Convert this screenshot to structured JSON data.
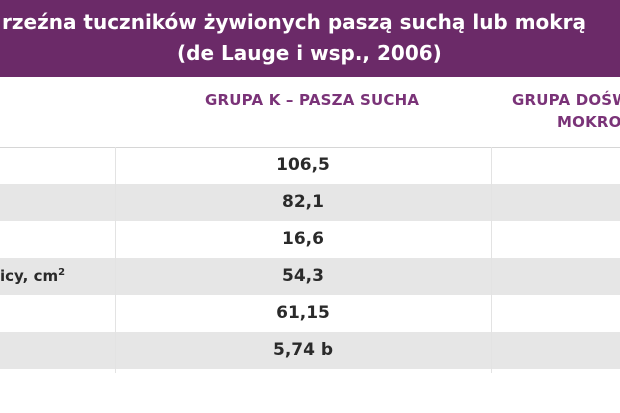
{
  "title": {
    "line1": "rzeźna tuczników żywionych paszą suchą lub mokrą",
    "line2": "(de Lauge i wsp., 2006)"
  },
  "headers": {
    "group_k": "GRUPA K – PASZA SUCHA",
    "group_d_line1": "GRUPA DOŚW",
    "group_d_line2": "MOKRO"
  },
  "rows": [
    {
      "label": "",
      "value": "106,5"
    },
    {
      "label": "",
      "value": "82,1"
    },
    {
      "label": "",
      "value": "16,6"
    },
    {
      "label": "icy, cm",
      "label_sup": "2",
      "value": "54,3"
    },
    {
      "label": "",
      "value": "61,15"
    },
    {
      "label": "",
      "value": "5,74 b"
    }
  ],
  "colors": {
    "title_bg": "#6b2a68",
    "header_text": "#7a3378",
    "row_shade": "#e6e6e6"
  }
}
